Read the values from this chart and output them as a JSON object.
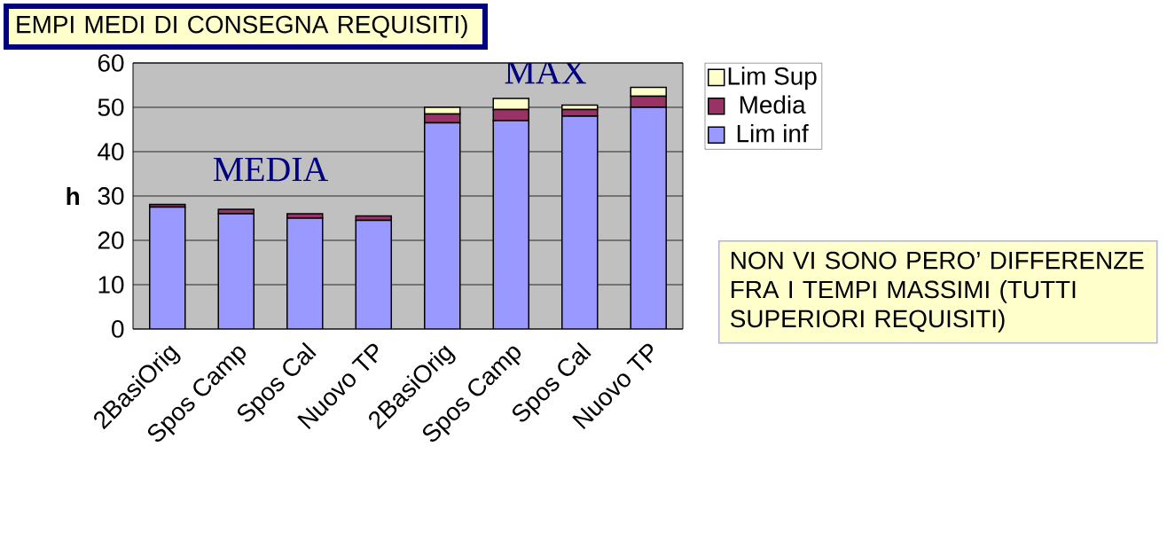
{
  "chart_data": {
    "type": "bar",
    "stacked": true,
    "ylabel": "h",
    "categories": [
      "2BasiOrig",
      "Spos Camp",
      "Spos Cal",
      "Nuovo TP",
      "2BasiOrig",
      "Spos Camp",
      "Spos Cal",
      "Nuovo TP"
    ],
    "series": [
      {
        "name": "Lim inf",
        "color": "#9999ff",
        "values": [
          27.5,
          26,
          25,
          24.5,
          46.5,
          47,
          48,
          50
        ]
      },
      {
        "name": "Media",
        "color": "#993366",
        "values": [
          0.6,
          1,
          1,
          1,
          2,
          2.5,
          1.5,
          2.5
        ]
      },
      {
        "name": "Lim Sup",
        "color": "#ffffcc",
        "values": [
          0,
          0,
          0,
          0,
          1.5,
          2.5,
          1,
          2
        ]
      }
    ],
    "ylim": [
      0,
      60
    ],
    "yticks": [
      0,
      10,
      20,
      30,
      40,
      50,
      60
    ],
    "grid": "y",
    "legend": "right",
    "annotations": [
      "EMPI MEDI DI CONSEGNA REQUISITI)",
      "MEDIA",
      "MAX",
      "NON VI SONO PERO’ DIFFERENZE FRA I TEMPI MASSIMI (TUTTI SUPERIORI REQUISITI)"
    ]
  }
}
